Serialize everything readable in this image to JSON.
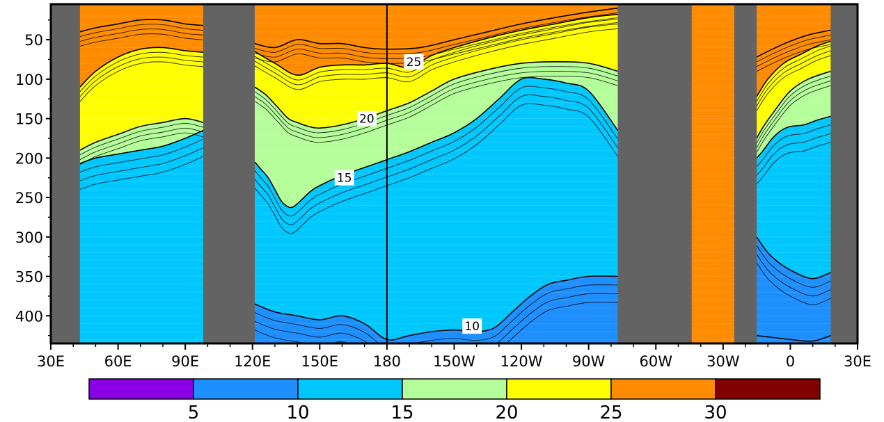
{
  "chart_data": {
    "type": "heatmap",
    "subtype": "filled-contour depth-longitude section",
    "title": "",
    "xlabel": "",
    "ylabel": "",
    "x_ticks": [
      {
        "lon": 30,
        "label": "30E"
      },
      {
        "lon": 60,
        "label": "60E"
      },
      {
        "lon": 90,
        "label": "90E"
      },
      {
        "lon": 120,
        "label": "120E"
      },
      {
        "lon": 150,
        "label": "150E"
      },
      {
        "lon": 180,
        "label": "180"
      },
      {
        "lon": 210,
        "label": "150W"
      },
      {
        "lon": 240,
        "label": "120W"
      },
      {
        "lon": 270,
        "label": "90W"
      },
      {
        "lon": 300,
        "label": "60W"
      },
      {
        "lon": 330,
        "label": "30W"
      },
      {
        "lon": 360,
        "label": "0"
      },
      {
        "lon": 390,
        "label": "30E"
      }
    ],
    "y_ticks": [
      {
        "depth": 50,
        "label": "50"
      },
      {
        "depth": 100,
        "label": "100"
      },
      {
        "depth": 150,
        "label": "150"
      },
      {
        "depth": 200,
        "label": "200"
      },
      {
        "depth": 250,
        "label": "250"
      },
      {
        "depth": 300,
        "label": "300"
      },
      {
        "depth": 350,
        "label": "350"
      },
      {
        "depth": 400,
        "label": "400"
      }
    ],
    "x_range": [
      30,
      390
    ],
    "y_range": [
      5,
      435
    ],
    "y_inverted": true,
    "land_color": "#636363",
    "land_segments": [
      [
        30,
        43
      ],
      [
        98,
        121
      ],
      [
        283,
        316
      ],
      [
        335,
        345
      ],
      [
        378,
        390
      ]
    ],
    "reference_line_lon": 180,
    "contour_labels": [
      {
        "text": "25",
        "lon": 192,
        "depth": 78
      },
      {
        "text": "20",
        "lon": 171,
        "depth": 150
      },
      {
        "text": "15",
        "lon": 161,
        "depth": 225
      },
      {
        "text": "10",
        "lon": 218,
        "depth": 413
      }
    ],
    "isotherms": [
      {
        "value": 28,
        "segments": [
          {
            "lon": [
              43,
              50,
              60,
              70,
              80,
              90,
              98
            ],
            "depth": [
              40,
              35,
              30,
              25,
              25,
              30,
              32
            ]
          },
          {
            "lon": [
              121,
              130,
              140,
              150,
              160,
              170,
              180,
              195,
              210,
              225,
              240,
              255,
              270,
              283
            ],
            "depth": [
              55,
              60,
              50,
              55,
              55,
              60,
              62,
              60,
              50,
              40,
              30,
              22,
              15,
              10
            ]
          },
          {
            "lon": [
              345,
              352,
              360,
              368,
              378
            ],
            "depth": [
              72,
              62,
              52,
              44,
              38
            ]
          }
        ]
      },
      {
        "value": 25,
        "segments": [
          {
            "lon": [
              43,
              50,
              60,
              70,
              80,
              90,
              98
            ],
            "depth": [
              110,
              90,
              72,
              62,
              60,
              64,
              66
            ]
          },
          {
            "lon": [
              121,
              130,
              140,
              150,
              160,
              170,
              180,
              190,
              200,
              210,
              225,
              240,
              255,
              270,
              283
            ],
            "depth": [
              65,
              80,
              95,
              85,
              82,
              82,
              80,
              85,
              70,
              60,
              48,
              38,
              30,
              22,
              18
            ]
          },
          {
            "lon": [
              345,
              350,
              357,
              365,
              372,
              378
            ],
            "depth": [
              122,
              100,
              80,
              68,
              58,
              52
            ]
          }
        ]
      },
      {
        "value": 20,
        "segments": [
          {
            "lon": [
              43,
              50,
              60,
              70,
              80,
              90,
              98
            ],
            "depth": [
              190,
              180,
              170,
              160,
              155,
              150,
              155
            ]
          },
          {
            "lon": [
              121,
              126,
              131,
              136,
              140,
              145,
              150,
              160,
              170,
              180,
              190,
              200,
              210,
              225,
              240,
              255,
              270,
              283
            ],
            "depth": [
              110,
              120,
              135,
              150,
              155,
              160,
              162,
              158,
              150,
              140,
              130,
              115,
              100,
              88,
              80,
              78,
              80,
              90
            ]
          },
          {
            "lon": [
              345,
              348,
              353,
              360,
              368,
              378
            ],
            "depth": [
              175,
              160,
              140,
              115,
              100,
              90
            ]
          }
        ]
      },
      {
        "value": 15,
        "segments": [
          {
            "lon": [
              43,
              50,
              60,
              70,
              80,
              90,
              98
            ],
            "depth": [
              207,
              200,
              195,
              190,
              185,
              175,
              165
            ]
          },
          {
            "lon": [
              121,
              124,
              127,
              130,
              133,
              136,
              138,
              140,
              143,
              146,
              150,
              160,
              170,
              180,
              190,
              200,
              210,
              220,
              230,
              240,
              250,
              260,
              270,
              283
            ],
            "depth": [
              205,
              215,
              225,
              240,
              255,
              262,
              262,
              258,
              250,
              242,
              235,
              222,
              212,
              202,
              192,
              180,
              168,
              150,
              125,
              100,
              100,
              105,
              115,
              165
            ]
          },
          {
            "lon": [
              345,
              348,
              352,
              356,
              360,
              366,
              372,
              378
            ],
            "depth": [
              200,
              190,
              175,
              165,
              160,
              158,
              152,
              147
            ]
          }
        ]
      },
      {
        "value": 10,
        "segments": [
          {
            "lon": [
              121,
              130,
              140,
              150,
              160,
              170,
              180,
              190,
              200,
              210,
              220,
              228,
              236,
              244,
              252,
              260,
              270,
              283
            ],
            "depth": [
              385,
              395,
              400,
              405,
              400,
              410,
              430,
              425,
              420,
              418,
              420,
              415,
              395,
              375,
              360,
              355,
              350,
              350
            ]
          },
          {
            "lon": [
              345,
              350,
              356,
              362,
              368,
              372,
              378
            ],
            "depth": [
              300,
              320,
              335,
              345,
              352,
              352,
              345
            ]
          }
        ]
      },
      {
        "value": 8,
        "segments": [
          {
            "lon": [
              345,
              360,
              370,
              378
            ],
            "depth": [
              425,
              430,
              432,
              425
            ]
          }
        ]
      }
    ],
    "colorbar": {
      "labels": [
        "5",
        "10",
        "15",
        "20",
        "25",
        "30"
      ],
      "colors": [
        "#8a00e6",
        "#1e8fff",
        "#00c8ff",
        "#b4ff9a",
        "#ffff00",
        "#ff8c00",
        "#800000"
      ]
    }
  }
}
